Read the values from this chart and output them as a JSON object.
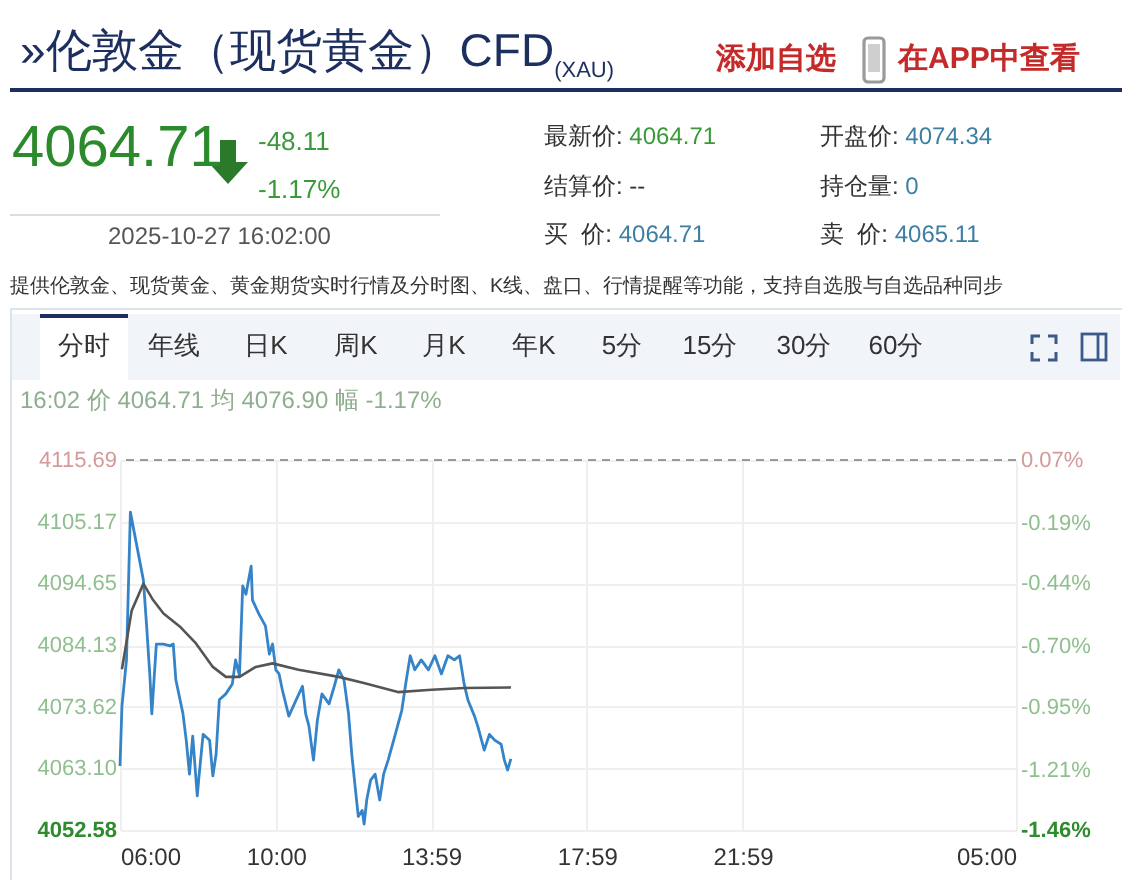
{
  "chart_data": {
    "type": "line",
    "title": "»伦敦金（现货黄金）CFD$_{(XAU)}$",
    "annotations": [
      "添加自选",
      "在APP中查看",
      "4064.71",
      "-48.11",
      "-1.17%",
      "2025-10-27 16:02:00",
      "最新价: 4064.71",
      "开盘价: 4074.34",
      "结算价: --",
      "持仓量: 0",
      "买  价: 4064.71",
      "卖  价: 4065.11",
      "提供伦敦金、现货黄金、黄金期货实时行情及分时图、K线、盘口、行情提醒等功能，支持自选股与自选品种同步",
      "分时",
      "年线",
      "日K",
      "周K",
      "月K",
      "年K",
      "5分",
      "15分",
      "30分",
      "60分",
      "16:02 价 4064.71 均 4076.90 幅 -1.17%"
    ],
    "xlim": [
      "2025-10-27T06:00",
      "2025-10-28T05:00"
    ],
    "xticks": [
      {
        "value": "2025-10-27T06:00",
        "label": "06:00"
      },
      {
        "value": "2025-10-27T10:00",
        "label": "10:00"
      },
      {
        "value": "2025-10-27T13:59",
        "label": "13:59"
      },
      {
        "value": "2025-10-27T17:59",
        "label": "17:59"
      },
      {
        "value": "2025-10-27T21:59",
        "label": "21:59"
      },
      {
        "value": "2025-10-28T05:00",
        "label": "05:00"
      }
    ],
    "ylim": [
      4052.58,
      4115.69
    ],
    "yticks": [
      4052.58,
      {
        "value": 4063.1,
        "label": "4063.10"
      },
      4073.62,
      4084.13,
      4094.65,
      4105.17,
      4115.69
    ],
    "y2lim": [
      -1.46,
      0.07
    ],
    "y2ticks": [
      {
        "value": -1.46,
        "label": "-1.46%"
      },
      {
        "value": -1.21,
        "label": "-1.21%"
      },
      {
        "value": -0.95,
        "label": "-0.95%"
      },
      {
        "value": -0.7,
        "label": "-0.70%"
      },
      {
        "value": -0.44,
        "label": "-0.44%"
      },
      {
        "value": -0.19,
        "label": "-0.19%"
      },
      {
        "value": 0.07,
        "label": "0.07%"
      }
    ],
    "ref_lines": [
      {
        "axis": "y",
        "value": 4115.69,
        "color": "#999999",
        "line_style": "dashed"
      }
    ],
    "grid": true,
    "line_style": "solid",
    "series": [
      {
        "color": "#3584c9",
        "x": [
          "2025-10-27T06:00",
          "2025-10-27T06:03",
          "2025-10-27T06:10",
          "2025-10-27T06:16",
          "2025-10-27T06:36",
          "2025-10-27T06:41",
          "2025-10-27T06:46",
          "2025-10-27T06:49",
          "2025-10-27T06:56",
          "2025-10-27T07:07",
          "2025-10-27T07:17",
          "2025-10-27T07:22",
          "2025-10-27T07:26",
          "2025-10-27T07:37",
          "2025-10-27T07:42",
          "2025-10-27T07:47",
          "2025-10-27T07:52",
          "2025-10-27T07:59",
          "2025-10-27T08:02",
          "2025-10-27T08:08",
          "2025-10-27T08:18",
          "2025-10-27T08:23",
          "2025-10-27T08:28",
          "2025-10-27T08:33",
          "2025-10-27T08:43",
          "2025-10-27T08:53",
          "2025-10-27T08:58",
          "2025-10-27T09:04",
          "2025-10-27T09:09",
          "2025-10-27T09:14",
          "2025-10-27T09:22",
          "2025-10-27T09:24",
          "2025-10-27T09:34",
          "2025-10-27T09:44",
          "2025-10-27T09:50",
          "2025-10-27T09:55",
          "2025-10-27T10:00",
          "2025-10-27T10:05",
          "2025-10-27T10:10",
          "2025-10-27T10:20",
          "2025-10-27T10:31",
          "2025-10-27T10:41",
          "2025-10-27T10:46",
          "2025-10-27T10:51",
          "2025-10-27T10:58",
          "2025-10-27T11:04",
          "2025-10-27T11:11",
          "2025-10-27T11:22",
          "2025-10-27T11:30",
          "2025-10-27T11:37",
          "2025-10-27T11:45",
          "2025-10-27T11:52",
          "2025-10-27T11:57",
          "2025-10-27T12:02",
          "2025-10-27T12:07",
          "2025-10-27T12:13",
          "2025-10-27T12:16",
          "2025-10-27T12:20",
          "2025-10-27T12:26",
          "2025-10-27T12:33",
          "2025-10-27T12:40",
          "2025-10-27T12:46",
          "2025-10-27T12:53",
          "2025-10-27T13:04",
          "2025-10-27T13:14",
          "2025-10-27T13:21",
          "2025-10-27T13:27",
          "2025-10-27T13:34",
          "2025-10-27T13:44",
          "2025-10-27T13:55",
          "2025-10-27T14:05",
          "2025-10-27T14:15",
          "2025-10-27T14:25",
          "2025-10-27T14:35",
          "2025-10-27T14:43",
          "2025-10-27T14:50",
          "2025-10-27T14:56",
          "2025-10-27T15:06",
          "2025-10-27T15:11",
          "2025-10-27T15:21",
          "2025-10-27T15:29",
          "2025-10-27T15:37",
          "2025-10-27T15:47",
          "2025-10-27T15:52",
          "2025-10-27T15:57",
          "2025-10-27T16:02"
        ],
        "values": [
          4063.5,
          4073.7,
          4081.6,
          4106.8,
          4095.2,
          4087.4,
          4078.9,
          4072.4,
          4084.3,
          4084.3,
          4084.0,
          4084.3,
          4078.2,
          4072.4,
          4067.9,
          4062.1,
          4068.6,
          4058.4,
          4062.1,
          4068.9,
          4067.9,
          4061.8,
          4065.5,
          4074.8,
          4075.8,
          4077.5,
          4081.6,
          4078.9,
          4094.2,
          4092.8,
          4097.6,
          4091.8,
          4089.4,
          4087.4,
          4082.6,
          4084.3,
          4079.9,
          4079.2,
          4076.5,
          4072.0,
          4074.7,
          4077.1,
          4072.4,
          4070.3,
          4064.5,
          4071.3,
          4075.8,
          4074.1,
          4077.1,
          4079.9,
          4078.2,
          4072.4,
          4065.5,
          4060.1,
          4054.9,
          4055.9,
          4053.6,
          4057.7,
          4061.1,
          4062.1,
          4057.7,
          4062.1,
          4064.5,
          4068.9,
          4073.0,
          4078.2,
          4082.3,
          4079.9,
          4081.6,
          4079.9,
          4082.3,
          4079.2,
          4082.3,
          4081.6,
          4082.3,
          4077.5,
          4074.7,
          4072.0,
          4070.3,
          4066.2,
          4068.9,
          4067.9,
          4067.2,
          4064.5,
          4062.8,
          4064.7
        ]
      },
      {
        "color": "#555555",
        "x": [
          "2025-10-27T06:03",
          "2025-10-27T06:18",
          "2025-10-27T06:36",
          "2025-10-27T06:51",
          "2025-10-27T07:07",
          "2025-10-27T07:32",
          "2025-10-27T07:57",
          "2025-10-27T08:23",
          "2025-10-27T08:43",
          "2025-10-27T09:04",
          "2025-10-27T09:29",
          "2025-10-27T09:55",
          "2025-10-27T10:35",
          "2025-10-27T11:37",
          "2025-10-27T12:17",
          "2025-10-27T13:08",
          "2025-10-27T14:00",
          "2025-10-27T14:50",
          "2025-10-27T16:02"
        ],
        "values": [
          4080,
          4090,
          4094.6,
          4091.8,
          4089.5,
          4087.3,
          4084.4,
          4080.4,
          4078.7,
          4078.7,
          4080.4,
          4081,
          4079.9,
          4078.7,
          4077.6,
          4076.1,
          4076.5,
          4076.8,
          4076.9
        ]
      }
    ]
  }
}
